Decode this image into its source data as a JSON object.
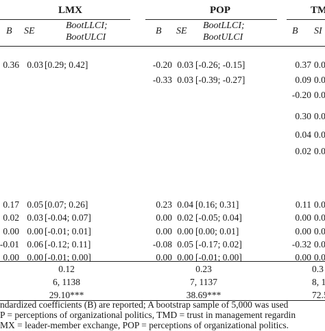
{
  "groups": [
    {
      "title": "LMX",
      "cols": [
        "B",
        "SE",
        "BootLLCI;",
        "BootULCI"
      ]
    },
    {
      "title": "POP",
      "cols": [
        "B",
        "SE",
        "BootLLCI;",
        "BootULCI"
      ]
    },
    {
      "title": "TM",
      "cols": [
        "B",
        "SI"
      ]
    }
  ],
  "rows": [
    {
      "lmx": [
        "0.36",
        "0.03",
        "[0.29; 0.42]"
      ],
      "pop": [
        "-0.20",
        "0.03",
        "[-0.26; -0.15]"
      ],
      "tm": [
        "0.37",
        "0.0"
      ]
    },
    {
      "lmx": [
        "",
        "",
        ""
      ],
      "pop": [
        "-0.33",
        "0.03",
        "[-0.39; -0.27]"
      ],
      "tm": [
        "0.09",
        "0.0"
      ]
    },
    {
      "lmx": [
        "",
        "",
        ""
      ],
      "pop": [
        "",
        "",
        ""
      ],
      "tm": [
        "-0.20",
        "0.0"
      ]
    },
    {
      "lmx": [
        "",
        "",
        ""
      ],
      "pop": [
        "",
        "",
        ""
      ],
      "tm": [
        "0.30",
        "0.0"
      ]
    },
    {
      "lmx": [
        "",
        "",
        ""
      ],
      "pop": [
        "",
        "",
        ""
      ],
      "tm": [
        "0.04",
        "0.0"
      ]
    },
    {
      "lmx": [
        "",
        "",
        ""
      ],
      "pop": [
        "",
        "",
        ""
      ],
      "tm": [
        "0.02",
        "0.0"
      ]
    },
    {
      "lmx": [
        "0.17",
        "0.05",
        "[0.07; 0.26]"
      ],
      "pop": [
        "0.23",
        "0.04",
        "[0.16; 0.31]"
      ],
      "tm": [
        "0.11",
        "0.0"
      ]
    },
    {
      "lmx": [
        "0.02",
        "0.03",
        "[-0.04; 0.07]"
      ],
      "pop": [
        "0.00",
        "0.02",
        "[-0.05; 0.04]"
      ],
      "tm": [
        "0.00",
        "0.0"
      ]
    },
    {
      "lmx": [
        "0.00",
        "0.00",
        "[-0.01; 0.01]"
      ],
      "pop": [
        "0.00",
        "0.00",
        "[0.00; 0.01]"
      ],
      "tm": [
        "0.00",
        "0.0"
      ]
    },
    {
      "lmx": [
        "-0.01",
        "0.06",
        "[-0.12; 0.11]"
      ],
      "pop": [
        "-0.08",
        "0.05",
        "[-0.17; 0.02]"
      ],
      "tm": [
        "-0.32",
        "0.0"
      ]
    },
    {
      "lmx": [
        "0.00",
        "0.00",
        "[-0.01; 0.00]"
      ],
      "pop": [
        "0.00",
        "0.00",
        "[-0.01; 0.00]"
      ],
      "tm": [
        "0.00",
        "0.0"
      ]
    }
  ],
  "summary": [
    {
      "lmx": "0.12",
      "pop": "0.23",
      "tm": "0.3"
    },
    {
      "lmx": "6, 1138",
      "pop": "7, 1137",
      "tm": "8, 1"
    },
    {
      "lmx": "29.10***",
      "pop": "38.69***",
      "tm": "72.5("
    }
  ],
  "footnotes": [
    "ndardized coefficients (B) are reported; A bootstrap sample of 5,000 was used",
    "P = perceptions of organizational politics, TMD = trust in management regardin",
    "MX = leader-member exchange, POP = perceptions of organizational politics."
  ]
}
